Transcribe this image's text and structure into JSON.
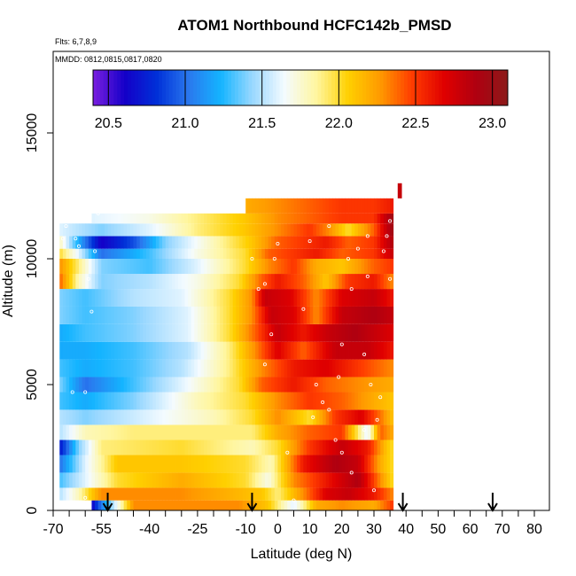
{
  "chart_data": {
    "type": "heatmap",
    "title": "ATOM1 Northbound HCFC142b_PMSD",
    "flights_note": "Flts: 6,7,8,9",
    "dates_note": "MMDD: 0812,0815,0817,0820",
    "xlabel": "Latitude (deg N)",
    "ylabel": "Altitude (m)",
    "xlim": [
      -70,
      80
    ],
    "ylim": [
      0,
      17500
    ],
    "x_ticks": [
      -70,
      -55,
      -40,
      -25,
      -10,
      0,
      10,
      20,
      30,
      40,
      50,
      60,
      70,
      80
    ],
    "x_tick_labels": [
      "-70",
      "-55",
      "-40",
      "-25",
      "-10",
      "0",
      "10",
      "20",
      "30",
      "40",
      "50",
      "60",
      "70",
      "80"
    ],
    "y_ticks": [
      0,
      5000,
      10000,
      15000
    ],
    "y_tick_labels": [
      "0",
      "5000",
      "10000",
      "15000"
    ],
    "colorbar": {
      "range": [
        20.4,
        23.1
      ],
      "ticks": [
        20.5,
        21.0,
        21.5,
        22.0,
        22.5,
        23.0
      ],
      "tick_labels": [
        "20.5",
        "21.0",
        "21.5",
        "22.0",
        "22.5",
        "23.0"
      ],
      "colors": [
        "#7b1fe0",
        "#1400c8",
        "#0030d8",
        "#2a78ee",
        "#14b4ff",
        "#9ad8ff",
        "#f4fbff",
        "#fff6a0",
        "#ffd000",
        "#ff9a00",
        "#ff3c00",
        "#e00000",
        "#b00010",
        "#8c1a1a"
      ]
    },
    "profile_markers_lat": [
      -53,
      -8,
      39,
      67
    ],
    "bands": [
      {
        "alt": [
          0,
          400
        ],
        "stops": [
          [
            -58,
            20.6
          ],
          [
            -56,
            20.9
          ],
          [
            -45,
            22.3
          ],
          [
            -12,
            22.3
          ],
          [
            -3,
            22.1
          ],
          [
            5,
            21.6
          ],
          [
            12,
            22.2
          ],
          [
            20,
            22.3
          ],
          [
            30,
            22.2
          ],
          [
            36,
            22.5
          ]
        ]
      },
      {
        "alt": [
          400,
          900
        ],
        "stops": [
          [
            -68,
            21.5
          ],
          [
            -62,
            21.8
          ],
          [
            -55,
            22.3
          ],
          [
            -30,
            22.3
          ],
          [
            -5,
            22.1
          ],
          [
            0,
            21.9
          ],
          [
            8,
            22.3
          ],
          [
            15,
            22.7
          ],
          [
            22,
            22.8
          ],
          [
            30,
            22.6
          ],
          [
            36,
            22.3
          ]
        ]
      },
      {
        "alt": [
          900,
          1500
        ],
        "stops": [
          [
            -68,
            21.3
          ],
          [
            -60,
            21.6
          ],
          [
            -50,
            22.0
          ],
          [
            -30,
            22.2
          ],
          [
            -10,
            22.0
          ],
          [
            -3,
            21.7
          ],
          [
            5,
            22.3
          ],
          [
            15,
            22.6
          ],
          [
            25,
            22.9
          ],
          [
            32,
            22.3
          ],
          [
            36,
            22.0
          ]
        ]
      },
      {
        "alt": [
          1500,
          2200
        ],
        "stops": [
          [
            -68,
            21.0
          ],
          [
            -60,
            21.6
          ],
          [
            -50,
            22.1
          ],
          [
            -30,
            22.1
          ],
          [
            -10,
            22.0
          ],
          [
            -2,
            21.8
          ],
          [
            8,
            22.6
          ],
          [
            18,
            22.9
          ],
          [
            25,
            22.8
          ],
          [
            32,
            22.2
          ],
          [
            36,
            22.0
          ]
        ]
      },
      {
        "alt": [
          2200,
          2800
        ],
        "stops": [
          [
            -68,
            20.7
          ],
          [
            -62,
            21.4
          ],
          [
            -55,
            21.9
          ],
          [
            -30,
            22.0
          ],
          [
            -8,
            21.8
          ],
          [
            0,
            22.0
          ],
          [
            10,
            22.5
          ],
          [
            20,
            22.8
          ],
          [
            28,
            22.6
          ],
          [
            34,
            22.1
          ],
          [
            36,
            22.0
          ]
        ]
      },
      {
        "alt": [
          2800,
          3400
        ],
        "stops": [
          [
            -68,
            21.5
          ],
          [
            -60,
            21.8
          ],
          [
            -45,
            21.9
          ],
          [
            -25,
            21.9
          ],
          [
            -8,
            21.9
          ],
          [
            0,
            22.2
          ],
          [
            10,
            22.4
          ],
          [
            20,
            22.5
          ],
          [
            28,
            21.6
          ],
          [
            32,
            22.4
          ],
          [
            36,
            22.2
          ]
        ]
      },
      {
        "alt": [
          3400,
          4000
        ],
        "stops": [
          [
            -68,
            21.5
          ],
          [
            -60,
            21.4
          ],
          [
            -40,
            21.6
          ],
          [
            -20,
            21.8
          ],
          [
            -8,
            22.0
          ],
          [
            0,
            22.3
          ],
          [
            10,
            22.0
          ],
          [
            18,
            22.5
          ],
          [
            26,
            22.7
          ],
          [
            33,
            22.3
          ],
          [
            36,
            22.1
          ]
        ]
      },
      {
        "alt": [
          4000,
          4700
        ],
        "stops": [
          [
            -68,
            21.3
          ],
          [
            -60,
            21.2
          ],
          [
            -45,
            21.4
          ],
          [
            -25,
            21.8
          ],
          [
            -10,
            22.0
          ],
          [
            0,
            22.3
          ],
          [
            10,
            22.5
          ],
          [
            20,
            22.4
          ],
          [
            30,
            22.2
          ],
          [
            36,
            22.1
          ]
        ]
      },
      {
        "alt": [
          4700,
          5300
        ],
        "stops": [
          [
            -68,
            21.4
          ],
          [
            -60,
            21.0
          ],
          [
            -45,
            21.3
          ],
          [
            -30,
            21.6
          ],
          [
            -12,
            22.0
          ],
          [
            -5,
            22.4
          ],
          [
            5,
            22.6
          ],
          [
            15,
            22.4
          ],
          [
            25,
            22.3
          ],
          [
            36,
            22.2
          ]
        ]
      },
      {
        "alt": [
          5300,
          6000
        ],
        "stops": [
          [
            -68,
            21.3
          ],
          [
            -60,
            21.2
          ],
          [
            -45,
            21.3
          ],
          [
            -30,
            21.5
          ],
          [
            -15,
            21.9
          ],
          [
            -5,
            22.3
          ],
          [
            5,
            22.6
          ],
          [
            15,
            22.7
          ],
          [
            25,
            22.5
          ],
          [
            36,
            22.3
          ]
        ]
      },
      {
        "alt": [
          6000,
          6700
        ],
        "stops": [
          [
            -68,
            21.2
          ],
          [
            -60,
            21.2
          ],
          [
            -45,
            21.3
          ],
          [
            -28,
            21.5
          ],
          [
            -15,
            21.9
          ],
          [
            -7,
            22.3
          ],
          [
            0,
            22.7
          ],
          [
            8,
            22.4
          ],
          [
            18,
            22.8
          ],
          [
            28,
            22.8
          ],
          [
            36,
            22.6
          ]
        ]
      },
      {
        "alt": [
          6700,
          7400
        ],
        "stops": [
          [
            -68,
            21.2
          ],
          [
            -60,
            21.3
          ],
          [
            -45,
            21.4
          ],
          [
            -28,
            21.6
          ],
          [
            -15,
            22.0
          ],
          [
            -7,
            22.4
          ],
          [
            0,
            22.8
          ],
          [
            8,
            22.6
          ],
          [
            16,
            22.8
          ],
          [
            24,
            22.9
          ],
          [
            36,
            22.7
          ]
        ]
      },
      {
        "alt": [
          7400,
          8100
        ],
        "stops": [
          [
            -68,
            21.4
          ],
          [
            -60,
            21.3
          ],
          [
            -45,
            21.4
          ],
          [
            -28,
            21.6
          ],
          [
            -15,
            22.0
          ],
          [
            -8,
            22.3
          ],
          [
            -2,
            22.8
          ],
          [
            5,
            22.7
          ],
          [
            12,
            22.3
          ],
          [
            20,
            22.8
          ],
          [
            30,
            22.9
          ],
          [
            36,
            22.8
          ]
        ]
      },
      {
        "alt": [
          8100,
          8800
        ],
        "stops": [
          [
            -68,
            21.4
          ],
          [
            -60,
            21.3
          ],
          [
            -45,
            21.5
          ],
          [
            -30,
            21.6
          ],
          [
            -15,
            22.0
          ],
          [
            -8,
            22.3
          ],
          [
            -4,
            22.8
          ],
          [
            4,
            22.7
          ],
          [
            12,
            22.3
          ],
          [
            20,
            22.7
          ],
          [
            30,
            22.8
          ],
          [
            36,
            22.6
          ]
        ]
      },
      {
        "alt": [
          8800,
          9400
        ],
        "stops": [
          [
            -68,
            22.4
          ],
          [
            -62,
            21.8
          ],
          [
            -55,
            21.4
          ],
          [
            -40,
            21.5
          ],
          [
            -25,
            21.7
          ],
          [
            -12,
            22.0
          ],
          [
            -5,
            22.4
          ],
          [
            0,
            22.6
          ],
          [
            8,
            22.4
          ],
          [
            15,
            22.1
          ],
          [
            22,
            22.5
          ],
          [
            30,
            22.6
          ],
          [
            36,
            22.3
          ]
        ]
      },
      {
        "alt": [
          9400,
          10000
        ],
        "stops": [
          [
            -68,
            22.3
          ],
          [
            -62,
            21.9
          ],
          [
            -55,
            21.4
          ],
          [
            -40,
            21.3
          ],
          [
            -25,
            21.6
          ],
          [
            -10,
            22.0
          ],
          [
            -3,
            22.3
          ],
          [
            5,
            22.5
          ],
          [
            12,
            22.2
          ],
          [
            20,
            22.1
          ],
          [
            30,
            22.4
          ],
          [
            36,
            22.5
          ]
        ]
      },
      {
        "alt": [
          10000,
          10400
        ],
        "stops": [
          [
            -68,
            22.0
          ],
          [
            -62,
            21.6
          ],
          [
            -55,
            21.0
          ],
          [
            -40,
            21.3
          ],
          [
            -25,
            21.7
          ],
          [
            -10,
            22.0
          ],
          [
            -3,
            22.4
          ],
          [
            5,
            22.5
          ],
          [
            12,
            22.6
          ],
          [
            20,
            22.4
          ],
          [
            30,
            22.5
          ],
          [
            36,
            22.8
          ]
        ]
      },
      {
        "alt": [
          10400,
          10900
        ],
        "stops": [
          [
            -68,
            21.8
          ],
          [
            -62,
            21.2
          ],
          [
            -55,
            20.6
          ],
          [
            -45,
            20.9
          ],
          [
            -35,
            21.4
          ],
          [
            -20,
            21.8
          ],
          [
            -8,
            22.1
          ],
          [
            0,
            22.4
          ],
          [
            8,
            22.5
          ],
          [
            15,
            22.6
          ],
          [
            22,
            22.4
          ],
          [
            30,
            22.5
          ],
          [
            36,
            22.9
          ]
        ]
      },
      {
        "alt": [
          10900,
          11400
        ],
        "stops": [
          [
            -68,
            21.6
          ],
          [
            -62,
            21.5
          ],
          [
            -55,
            21.4
          ],
          [
            -40,
            21.6
          ],
          [
            -25,
            21.9
          ],
          [
            -10,
            22.1
          ],
          [
            0,
            22.3
          ],
          [
            10,
            22.5
          ],
          [
            16,
            22.3
          ],
          [
            22,
            22.0
          ],
          [
            30,
            22.4
          ],
          [
            36,
            23.0
          ]
        ]
      },
      {
        "alt": [
          11400,
          11800
        ],
        "stops": [
          [
            -58,
            21.6
          ],
          [
            -40,
            21.7
          ],
          [
            -25,
            21.9
          ],
          [
            -10,
            22.1
          ],
          [
            0,
            22.3
          ],
          [
            10,
            22.4
          ],
          [
            20,
            22.5
          ],
          [
            30,
            22.5
          ],
          [
            36,
            23.0
          ]
        ]
      },
      {
        "alt": [
          11800,
          12400
        ],
        "stops": [
          [
            -10,
            22.2
          ],
          [
            0,
            22.3
          ],
          [
            10,
            22.4
          ],
          [
            20,
            22.5
          ],
          [
            30,
            22.5
          ],
          [
            36,
            22.6
          ]
        ]
      },
      {
        "alt": [
          12400,
          13000
        ],
        "stops": [
          [
            38,
            22.8
          ]
        ]
      }
    ],
    "sample_points": [
      [
        -69,
        2400
      ],
      [
        -69,
        1200
      ],
      [
        -69,
        3200
      ],
      [
        -69,
        5800
      ],
      [
        -67,
        10800
      ],
      [
        -66,
        11300
      ],
      [
        -63,
        10800
      ],
      [
        -62,
        10500
      ],
      [
        -64,
        4700
      ],
      [
        -60,
        4700
      ],
      [
        -58,
        7900
      ],
      [
        -59,
        9200
      ],
      [
        -57,
        10300
      ],
      [
        -56,
        11800
      ],
      [
        -60,
        500
      ],
      [
        -8,
        10000
      ],
      [
        -6,
        8800
      ],
      [
        -4,
        9000
      ],
      [
        -2,
        7000
      ],
      [
        -1,
        10000
      ],
      [
        -4,
        5800
      ],
      [
        0,
        10600
      ],
      [
        3,
        2300
      ],
      [
        5,
        400
      ],
      [
        8,
        8000
      ],
      [
        10,
        10700
      ],
      [
        11,
        3700
      ],
      [
        12,
        5000
      ],
      [
        14,
        4300
      ],
      [
        16,
        11300
      ],
      [
        16,
        4000
      ],
      [
        18,
        2800
      ],
      [
        19,
        5300
      ],
      [
        20,
        6600
      ],
      [
        20,
        2300
      ],
      [
        22,
        10000
      ],
      [
        23,
        8800
      ],
      [
        23,
        1500
      ],
      [
        25,
        10400
      ],
      [
        27,
        3200
      ],
      [
        27,
        6200
      ],
      [
        28,
        10900
      ],
      [
        28,
        9300
      ],
      [
        29,
        5000
      ],
      [
        30,
        800
      ],
      [
        31,
        3600
      ],
      [
        32,
        4500
      ],
      [
        33,
        10300
      ],
      [
        34,
        10900
      ],
      [
        35,
        9200
      ],
      [
        35,
        11500
      ]
    ]
  }
}
